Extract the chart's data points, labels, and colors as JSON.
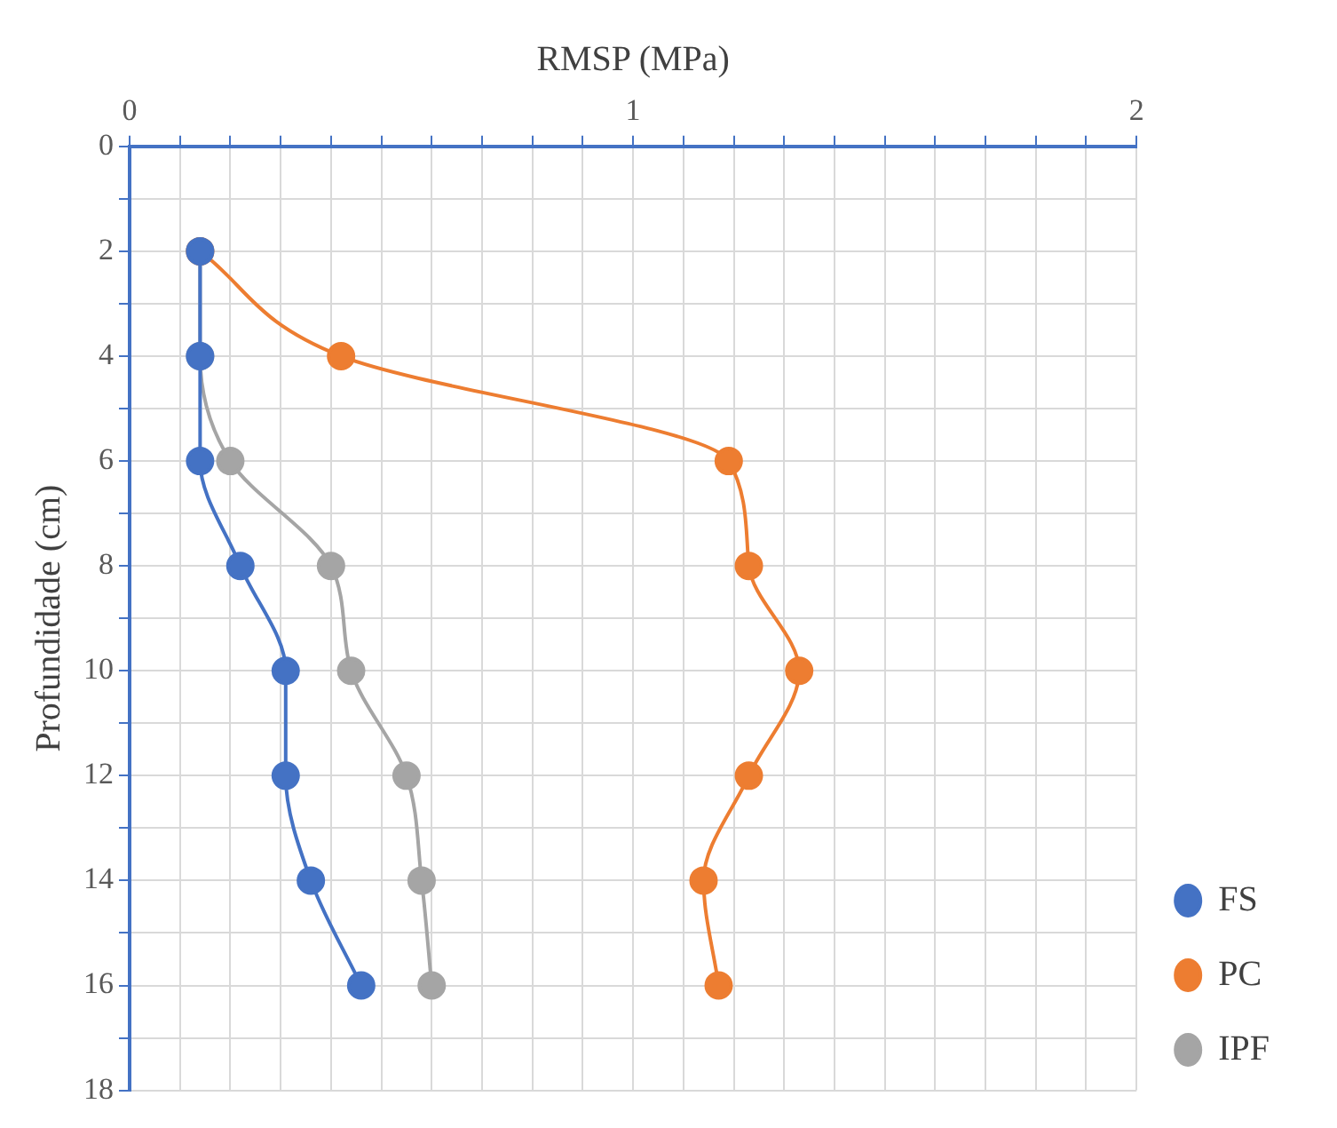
{
  "chart_data": {
    "type": "line",
    "xlabel": "RMSP (MPa)",
    "ylabel": "Profundidade (cm)",
    "xlim": [
      0,
      2
    ],
    "ylim": [
      18,
      0
    ],
    "xticks": [
      0,
      {
        "value": 0.1,
        "label": null
      },
      {
        "value": 0.2,
        "label": null
      },
      {
        "value": 0.3,
        "label": null
      },
      {
        "value": 0.4,
        "label": null
      },
      {
        "value": 0.5,
        "label": null
      },
      {
        "value": 0.6,
        "label": null
      },
      {
        "value": 0.7,
        "label": null
      },
      {
        "value": 0.8,
        "label": null
      },
      {
        "value": 0.9,
        "label": null
      },
      1,
      {
        "value": 1.1,
        "label": null
      },
      {
        "value": 1.2,
        "label": null
      },
      {
        "value": 1.3,
        "label": null
      },
      {
        "value": 1.4,
        "label": null
      },
      {
        "value": 1.5,
        "label": null
      },
      {
        "value": 1.6,
        "label": null
      },
      {
        "value": 1.7,
        "label": null
      },
      {
        "value": 1.8,
        "label": null
      },
      {
        "value": 1.9,
        "label": null
      },
      2
    ],
    "yticks": [
      0,
      {
        "value": 1,
        "label": null
      },
      2,
      {
        "value": 3,
        "label": null
      },
      4,
      {
        "value": 5,
        "label": null
      },
      6,
      {
        "value": 7,
        "label": null
      },
      8,
      {
        "value": 9,
        "label": null
      },
      10,
      {
        "value": 11,
        "label": null
      },
      12,
      {
        "value": 13,
        "label": null
      },
      14,
      {
        "value": 15,
        "label": null
      },
      16,
      {
        "value": 17,
        "label": null
      },
      18
    ],
    "grid": true,
    "legend": "bottom right",
    "marker": "circle",
    "series": [
      {
        "name": "FS",
        "color": "#4472c4",
        "x": [
          0.14,
          0.14,
          0.14,
          0.22,
          0.31,
          0.31,
          0.36,
          0.46
        ],
        "values": [
          2,
          4,
          6,
          8,
          10,
          12,
          14,
          16
        ]
      },
      {
        "name": "PC",
        "color": "#ed7d31",
        "x": [
          0.14,
          0.42,
          1.19,
          1.23,
          1.33,
          1.23,
          1.14,
          1.17
        ],
        "values": [
          2,
          4,
          6,
          8,
          10,
          12,
          14,
          16
        ]
      },
      {
        "name": "IPF",
        "color": "#a5a5a5",
        "x": [
          0.14,
          0.14,
          0.2,
          0.4,
          0.44,
          0.55,
          0.58,
          0.6
        ],
        "values": [
          2,
          4,
          6,
          8,
          10,
          12,
          14,
          16
        ]
      }
    ]
  }
}
